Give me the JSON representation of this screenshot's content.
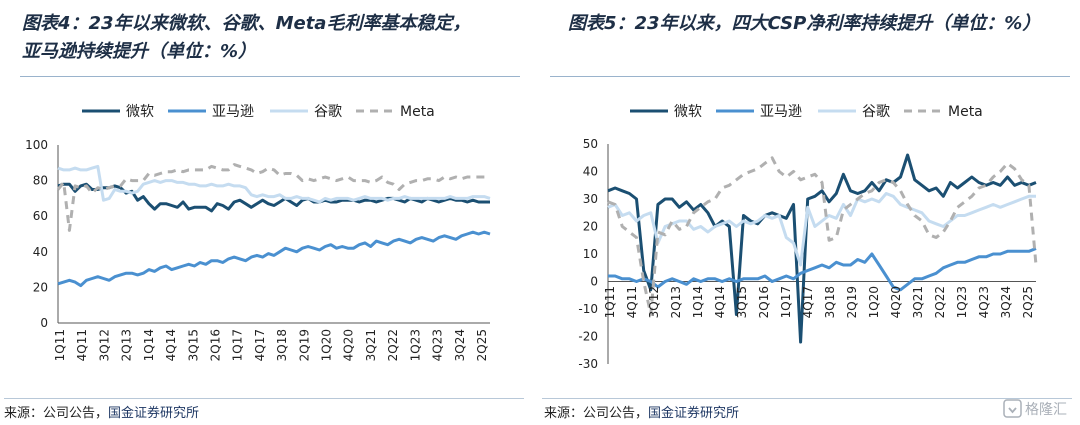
{
  "left": {
    "title_line1": "图表4：23年以来微软、谷歌、Meta毛利率基本稳定，",
    "title_line2": "亚马逊持续提升（单位：%）",
    "source_prefix": "来源：公司公告，",
    "source_org": "国金证券研究所"
  },
  "right": {
    "title": "图表5：23年以来，四大CSP净利率持续提升（单位：%）",
    "source_prefix": "来源：公司公告，",
    "source_org": "国金证券研究所"
  },
  "watermark": "格隆汇",
  "chart_data": [
    {
      "type": "line",
      "title": "图表4：23年以来微软、谷歌、Meta毛利率基本稳定，亚马逊持续提升（单位：%）",
      "ylim": [
        0,
        100
      ],
      "yticks": [
        0,
        20,
        40,
        60,
        80,
        100
      ],
      "x_labels": [
        "1Q11",
        "4Q11",
        "3Q12",
        "2Q13",
        "1Q14",
        "4Q14",
        "3Q15",
        "2Q16",
        "1Q17",
        "4Q17",
        "3Q18",
        "2Q19",
        "1Q20",
        "4Q20",
        "3Q21",
        "2Q22",
        "1Q23",
        "4Q23",
        "3Q24",
        "2Q25"
      ],
      "legend_position": "top",
      "grid": false,
      "series": [
        {
          "name": "微软",
          "color": "#1b4f72",
          "dash": "",
          "width": 3,
          "values": [
            77,
            78,
            78,
            74,
            77,
            78,
            75,
            75,
            76,
            76,
            77,
            76,
            73,
            74,
            69,
            71,
            67,
            64,
            67,
            67,
            66,
            65,
            68,
            64,
            65,
            65,
            65,
            63,
            67,
            66,
            64,
            68,
            69,
            67,
            65,
            67,
            69,
            67,
            66,
            68,
            70,
            68,
            66,
            69,
            70,
            68,
            68,
            69,
            68,
            68,
            69,
            69,
            69,
            68,
            69,
            69,
            68,
            69,
            70,
            70,
            69,
            68,
            70,
            69,
            68,
            70,
            69,
            68,
            69,
            70,
            69,
            69,
            68,
            69,
            68,
            68,
            68
          ]
        },
        {
          "name": "亚马逊",
          "color": "#4a90d0",
          "dash": "",
          "width": 3,
          "values": [
            22,
            23,
            24,
            23,
            21,
            24,
            25,
            26,
            25,
            24,
            26,
            27,
            28,
            28,
            27,
            28,
            30,
            29,
            31,
            32,
            30,
            31,
            32,
            33,
            32,
            34,
            33,
            35,
            35,
            34,
            36,
            37,
            36,
            35,
            37,
            38,
            37,
            39,
            38,
            40,
            42,
            41,
            40,
            42,
            43,
            42,
            41,
            43,
            44,
            42,
            43,
            42,
            42,
            44,
            45,
            43,
            46,
            45,
            44,
            46,
            47,
            46,
            45,
            47,
            48,
            47,
            46,
            48,
            49,
            48,
            47,
            49,
            50,
            51,
            50,
            51,
            50
          ]
        },
        {
          "name": "谷歌",
          "color": "#c5dcf0",
          "dash": "",
          "width": 3,
          "values": [
            87,
            86,
            86,
            87,
            86,
            86,
            87,
            88,
            69,
            70,
            75,
            74,
            74,
            73,
            74,
            78,
            79,
            80,
            79,
            80,
            80,
            79,
            79,
            78,
            78,
            77,
            77,
            78,
            77,
            77,
            78,
            77,
            77,
            76,
            72,
            71,
            72,
            71,
            71,
            72,
            70,
            70,
            71,
            70,
            70,
            69,
            68,
            70,
            69,
            70,
            70,
            70,
            69,
            70,
            71,
            70,
            70,
            70,
            69,
            70,
            70,
            71,
            70,
            70,
            70,
            70,
            70,
            70,
            70,
            71,
            70,
            70,
            70,
            71,
            71,
            71,
            70
          ]
        },
        {
          "name": "Meta",
          "color": "#b0b0b0",
          "dash": "8,6",
          "width": 3,
          "values": [
            75,
            79,
            52,
            77,
            76,
            77,
            73,
            76,
            75,
            76,
            77,
            77,
            81,
            80,
            80,
            80,
            84,
            83,
            84,
            85,
            85,
            86,
            85,
            86,
            86,
            86,
            86,
            88,
            87,
            86,
            86,
            89,
            88,
            87,
            86,
            84,
            85,
            87,
            86,
            83,
            84,
            84,
            83,
            80,
            81,
            80,
            81,
            82,
            81,
            80,
            81,
            82,
            80,
            80,
            80,
            79,
            80,
            82,
            79,
            78,
            75,
            78,
            79,
            80,
            80,
            81,
            81,
            80,
            82,
            81,
            82,
            81,
            82,
            82,
            82,
            82,
            82
          ]
        }
      ]
    },
    {
      "type": "line",
      "title": "图表5：23年以来，四大CSP净利率持续提升（单位：%）",
      "ylim": [
        -30,
        50
      ],
      "yticks": [
        -30,
        -20,
        -10,
        0,
        10,
        20,
        30,
        40,
        50
      ],
      "x_labels": [
        "1Q11",
        "4Q11",
        "3Q12",
        "2Q13",
        "1Q14",
        "4Q14",
        "3Q15",
        "2Q16",
        "1Q17",
        "4Q17",
        "3Q18",
        "2Q19",
        "1Q20",
        "4Q20",
        "3Q21",
        "2Q22",
        "1Q23",
        "4Q23",
        "3Q24",
        "2Q25"
      ],
      "legend_position": "top",
      "grid": false,
      "series": [
        {
          "name": "微软",
          "color": "#1b4f72",
          "dash": "",
          "width": 3,
          "values": [
            33,
            34,
            33,
            32,
            30,
            4,
            -3,
            28,
            30,
            30,
            27,
            29,
            26,
            28,
            25,
            20,
            22,
            20,
            -12,
            24,
            22,
            21,
            24,
            25,
            24,
            23,
            28,
            -22,
            30,
            31,
            33,
            29,
            32,
            39,
            33,
            32,
            33,
            36,
            33,
            37,
            36,
            38,
            46,
            37,
            35,
            33,
            34,
            31,
            36,
            34,
            36,
            38,
            36,
            35,
            36,
            35,
            38,
            35,
            36,
            35,
            36
          ]
        },
        {
          "name": "亚马逊",
          "color": "#4a90d0",
          "dash": "",
          "width": 3,
          "values": [
            2,
            2,
            1,
            1,
            0,
            1,
            0,
            -2,
            0,
            1,
            0,
            -1,
            1,
            0,
            1,
            1,
            0,
            1,
            0,
            1,
            1,
            1,
            2,
            0,
            1,
            2,
            1,
            3,
            4,
            5,
            6,
            5,
            7,
            6,
            6,
            8,
            7,
            10,
            6,
            2,
            -2,
            -3,
            -1,
            1,
            1,
            2,
            3,
            5,
            6,
            7,
            7,
            8,
            9,
            9,
            10,
            10,
            11,
            11,
            11,
            11,
            12
          ]
        },
        {
          "name": "谷歌",
          "color": "#c5dcf0",
          "dash": "",
          "width": 3,
          "values": [
            27,
            28,
            24,
            25,
            22,
            24,
            25,
            14,
            20,
            21,
            22,
            22,
            19,
            20,
            18,
            20,
            21,
            22,
            20,
            22,
            21,
            22,
            24,
            23,
            24,
            16,
            14,
            6,
            27,
            20,
            22,
            24,
            23,
            28,
            24,
            30,
            29,
            30,
            29,
            32,
            31,
            28,
            27,
            26,
            25,
            22,
            21,
            20,
            22,
            24,
            24,
            25,
            26,
            27,
            28,
            27,
            28,
            29,
            30,
            31,
            31
          ]
        },
        {
          "name": "Meta",
          "color": "#b0b0b0",
          "dash": "8,6",
          "width": 3,
          "values": [
            29,
            28,
            20,
            18,
            16,
            0,
            -12,
            18,
            17,
            22,
            19,
            20,
            25,
            27,
            29,
            30,
            34,
            35,
            37,
            39,
            40,
            41,
            43,
            45,
            40,
            38,
            40,
            37,
            38,
            39,
            36,
            15,
            16,
            26,
            28,
            30,
            32,
            33,
            36,
            37,
            36,
            33,
            28,
            24,
            22,
            17,
            16,
            18,
            22,
            27,
            29,
            31,
            34,
            35,
            38,
            40,
            43,
            41,
            37,
            35,
            6
          ]
        }
      ]
    }
  ]
}
